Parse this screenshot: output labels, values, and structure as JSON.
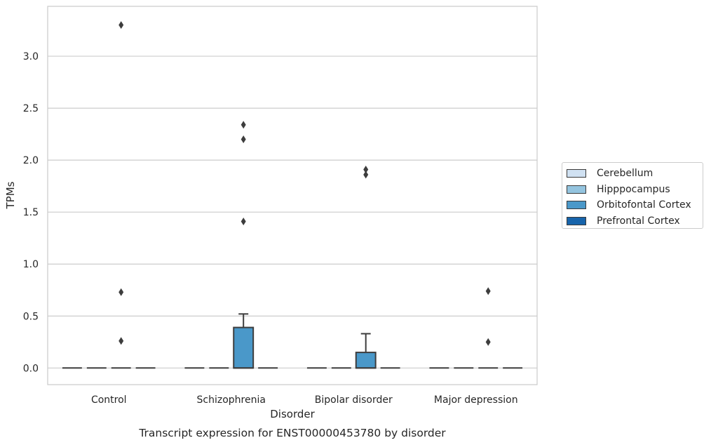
{
  "chart_data": {
    "type": "box",
    "title": "Transcript expression for ENST00000453780 by disorder",
    "xlabel": "Disorder",
    "ylabel": "TPMs",
    "categories": [
      "Control",
      "Schizophrenia",
      "Bipolar disorder",
      "Major depression"
    ],
    "ylim": [
      -0.16,
      3.48
    ],
    "yticks": [
      "0.0",
      "0.5",
      "1.0",
      "1.5",
      "2.0",
      "2.5",
      "3.0"
    ],
    "grid": "horizontal",
    "legend_placement": "right",
    "series": [
      {
        "name": "Cerebellum",
        "color": "#d0e1f2",
        "boxes": [
          {
            "q1": 0,
            "median": 0,
            "q3": 0,
            "whisker_low": 0,
            "whisker_high": 0,
            "outliers": []
          },
          {
            "q1": 0,
            "median": 0,
            "q3": 0,
            "whisker_low": 0,
            "whisker_high": 0,
            "outliers": []
          },
          {
            "q1": 0,
            "median": 0,
            "q3": 0,
            "whisker_low": 0,
            "whisker_high": 0,
            "outliers": []
          },
          {
            "q1": 0,
            "median": 0,
            "q3": 0,
            "whisker_low": 0,
            "whisker_high": 0,
            "outliers": []
          }
        ]
      },
      {
        "name": "Hipppocampus",
        "color": "#94c4df",
        "boxes": [
          {
            "q1": 0,
            "median": 0,
            "q3": 0,
            "whisker_low": 0,
            "whisker_high": 0,
            "outliers": []
          },
          {
            "q1": 0,
            "median": 0,
            "q3": 0,
            "whisker_low": 0,
            "whisker_high": 0,
            "outliers": []
          },
          {
            "q1": 0,
            "median": 0,
            "q3": 0,
            "whisker_low": 0,
            "whisker_high": 0,
            "outliers": []
          },
          {
            "q1": 0,
            "median": 0,
            "q3": 0,
            "whisker_low": 0,
            "whisker_high": 0,
            "outliers": []
          }
        ]
      },
      {
        "name": "Orbitofontal Cortex",
        "color": "#4a98c9",
        "boxes": [
          {
            "q1": 0,
            "median": 0,
            "q3": 0,
            "whisker_low": 0,
            "whisker_high": 0,
            "outliers": [
              3.3,
              0.73,
              0.26
            ]
          },
          {
            "q1": 0,
            "median": 0,
            "q3": 0.39,
            "whisker_low": 0,
            "whisker_high": 0.52,
            "outliers": [
              2.34,
              2.2,
              1.41
            ]
          },
          {
            "q1": 0,
            "median": 0,
            "q3": 0.15,
            "whisker_low": 0,
            "whisker_high": 0.33,
            "outliers": [
              1.91,
              1.86
            ]
          },
          {
            "q1": 0,
            "median": 0,
            "q3": 0,
            "whisker_low": 0,
            "whisker_high": 0,
            "outliers": [
              0.74,
              0.25
            ]
          }
        ]
      },
      {
        "name": "Prefrontal Cortex",
        "color": "#1764ab",
        "boxes": [
          {
            "q1": 0,
            "median": 0,
            "q3": 0,
            "whisker_low": 0,
            "whisker_high": 0,
            "outliers": []
          },
          {
            "q1": 0,
            "median": 0,
            "q3": 0,
            "whisker_low": 0,
            "whisker_high": 0,
            "outliers": []
          },
          {
            "q1": 0,
            "median": 0,
            "q3": 0,
            "whisker_low": 0,
            "whisker_high": 0,
            "outliers": []
          },
          {
            "q1": 0,
            "median": 0,
            "q3": 0,
            "whisker_low": 0,
            "whisker_high": 0,
            "outliers": []
          }
        ]
      }
    ]
  }
}
